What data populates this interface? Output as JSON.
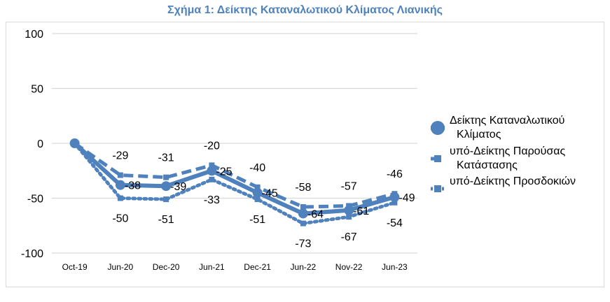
{
  "chart_data": {
    "type": "line",
    "title": "Σχήμα 1: Δείκτης Καταναλωτικού Κλίματος Λιανικής",
    "categories": [
      "Oct-19",
      "Jun-20",
      "Dec-20",
      "Jun-21",
      "Dec-21",
      "Jun-22",
      "Nov-22",
      "Jun-23"
    ],
    "ylim": [
      -100,
      100
    ],
    "yticks": [
      "100",
      "50",
      "0",
      "-50",
      "-100"
    ],
    "ytick_values": [
      100,
      50,
      0,
      -50,
      -100
    ],
    "grid": true,
    "legend_position": "right",
    "series": [
      {
        "name": "Δείκτης Καταναλωτικού Κλίματος",
        "legend_lines": [
          "Δείκτης Καταναλωτικού",
          "Κλίματος"
        ],
        "values": [
          0,
          -38,
          -39,
          -25,
          -45,
          -64,
          -61,
          -49
        ],
        "labels": [
          "",
          "-38",
          "-39",
          "-25",
          "-45",
          "-64",
          "-61",
          "-49"
        ],
        "style": "solid",
        "color": "#4f81bd"
      },
      {
        "name": "υπό-Δείκτης Παρούσας Κατάστασης",
        "legend_lines": [
          "υπό-Δείκτης Παρούσας",
          "Κατάστασης"
        ],
        "values": [
          0,
          -29,
          -31,
          -20,
          -40,
          -58,
          -57,
          -46
        ],
        "labels": [
          "",
          "-29",
          "-31",
          "-20",
          "-40",
          "-58",
          "-57",
          "-46"
        ],
        "style": "dashed",
        "color": "#4f81bd"
      },
      {
        "name": "υπό-Δείκτης Προσδοκιών",
        "legend_lines": [
          "υπό-Δείκτης Προσδοκιών"
        ],
        "values": [
          0,
          -50,
          -51,
          -33,
          -51,
          -73,
          -67,
          -54
        ],
        "labels": [
          "",
          "-50",
          "-51",
          "-33",
          "-51",
          "-73",
          "-67",
          "-54"
        ],
        "style": "dotted",
        "color": "#4f81bd"
      }
    ]
  }
}
